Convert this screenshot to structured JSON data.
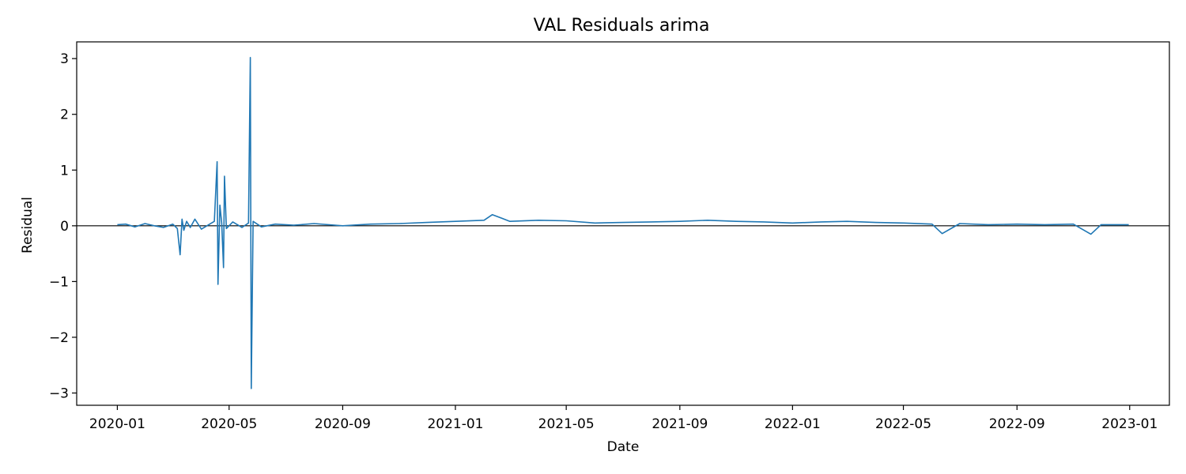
{
  "chart_data": {
    "type": "line",
    "title": "VAL Residuals arima",
    "xlabel": "Date",
    "ylabel": "Residual",
    "x_range": [
      "2019-11-18",
      "2023-02-13"
    ],
    "ylim": [
      -3.22,
      3.3
    ],
    "x_ticks": [
      "2020-01",
      "2020-05",
      "2020-09",
      "2021-01",
      "2021-05",
      "2021-09",
      "2022-01",
      "2022-05",
      "2022-09",
      "2023-01"
    ],
    "x_tick_dates": [
      "2020-01-01",
      "2020-05-01",
      "2020-09-01",
      "2021-01-01",
      "2021-05-01",
      "2021-09-01",
      "2022-01-01",
      "2022-05-01",
      "2022-09-01",
      "2023-01-01"
    ],
    "y_ticks": [
      -3,
      -2,
      -1,
      0,
      1,
      2,
      3
    ],
    "y_tick_labels": [
      "−3",
      "−2",
      "−1",
      "0",
      "1",
      "2",
      "3"
    ],
    "reference_line": {
      "y": 0,
      "color": "#000000"
    },
    "grid": false,
    "series": [
      {
        "color": "#1f77b4",
        "points": [
          [
            "2020-01-01",
            0.02
          ],
          [
            "2020-01-10",
            0.03
          ],
          [
            "2020-01-20",
            -0.02
          ],
          [
            "2020-01-31",
            0.04
          ],
          [
            "2020-02-10",
            0.0
          ],
          [
            "2020-02-20",
            -0.03
          ],
          [
            "2020-03-01",
            0.03
          ],
          [
            "2020-03-06",
            -0.05
          ],
          [
            "2020-03-09",
            -0.52
          ],
          [
            "2020-03-11",
            0.12
          ],
          [
            "2020-03-13",
            -0.08
          ],
          [
            "2020-03-16",
            0.08
          ],
          [
            "2020-03-20",
            -0.03
          ],
          [
            "2020-03-25",
            0.12
          ],
          [
            "2020-04-01",
            -0.06
          ],
          [
            "2020-04-10",
            0.03
          ],
          [
            "2020-04-15",
            0.08
          ],
          [
            "2020-04-18",
            1.15
          ],
          [
            "2020-04-19",
            -1.05
          ],
          [
            "2020-04-21",
            0.37
          ],
          [
            "2020-04-23",
            0.05
          ],
          [
            "2020-04-25",
            -0.75
          ],
          [
            "2020-04-26",
            0.89
          ],
          [
            "2020-04-28",
            -0.05
          ],
          [
            "2020-05-05",
            0.07
          ],
          [
            "2020-05-15",
            -0.03
          ],
          [
            "2020-05-22",
            0.05
          ],
          [
            "2020-05-24",
            3.02
          ],
          [
            "2020-05-25",
            -2.92
          ],
          [
            "2020-05-27",
            0.08
          ],
          [
            "2020-06-05",
            -0.02
          ],
          [
            "2020-06-20",
            0.03
          ],
          [
            "2020-07-10",
            0.01
          ],
          [
            "2020-08-01",
            0.04
          ],
          [
            "2020-09-01",
            0.0
          ],
          [
            "2020-10-01",
            0.03
          ],
          [
            "2020-11-01",
            0.04
          ],
          [
            "2020-12-01",
            0.06
          ],
          [
            "2021-01-01",
            0.08
          ],
          [
            "2021-02-01",
            0.1
          ],
          [
            "2021-02-10",
            0.2
          ],
          [
            "2021-03-01",
            0.08
          ],
          [
            "2021-04-01",
            0.1
          ],
          [
            "2021-05-01",
            0.09
          ],
          [
            "2021-06-01",
            0.05
          ],
          [
            "2021-07-01",
            0.06
          ],
          [
            "2021-08-01",
            0.07
          ],
          [
            "2021-09-01",
            0.08
          ],
          [
            "2021-10-01",
            0.1
          ],
          [
            "2021-11-01",
            0.08
          ],
          [
            "2021-12-01",
            0.07
          ],
          [
            "2022-01-01",
            0.05
          ],
          [
            "2022-02-01",
            0.07
          ],
          [
            "2022-03-01",
            0.08
          ],
          [
            "2022-04-01",
            0.06
          ],
          [
            "2022-05-01",
            0.05
          ],
          [
            "2022-06-01",
            0.03
          ],
          [
            "2022-06-12",
            -0.14
          ],
          [
            "2022-07-01",
            0.04
          ],
          [
            "2022-08-01",
            0.02
          ],
          [
            "2022-09-01",
            0.03
          ],
          [
            "2022-10-01",
            0.02
          ],
          [
            "2022-11-01",
            0.03
          ],
          [
            "2022-11-20",
            -0.15
          ],
          [
            "2022-12-01",
            0.02
          ],
          [
            "2022-12-31",
            0.02
          ]
        ]
      }
    ]
  }
}
